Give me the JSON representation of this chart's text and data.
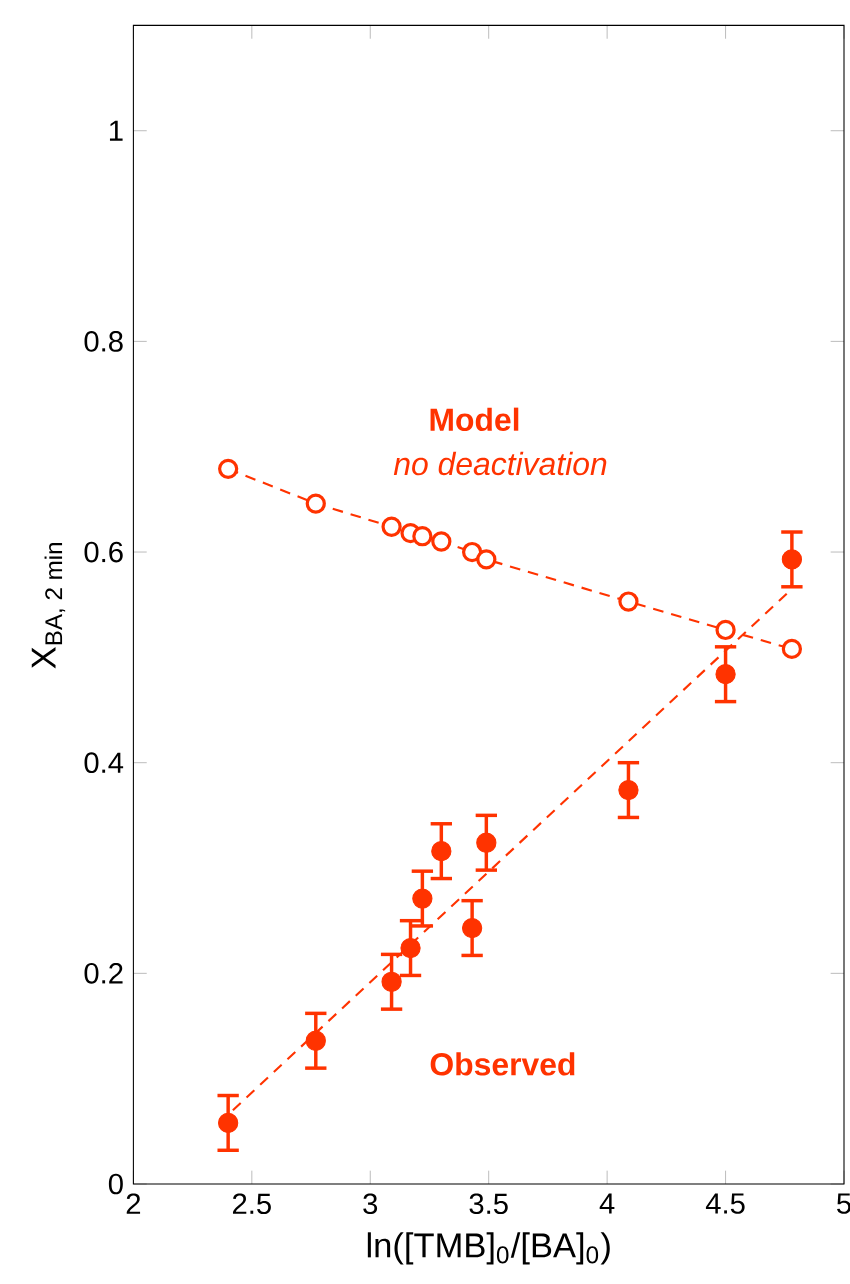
{
  "chart_data": {
    "type": "scatter",
    "xlabel": "ln([TMB]$_{0}$/[BA]$_{0}$)",
    "ylabel": "\\text{X}_{\\text{BA, 2 min}}",
    "xlim": [
      2,
      5
    ],
    "ylim": [
      0,
      1.1
    ],
    "xticks": [
      2,
      2.5,
      3,
      3.5,
      4,
      4.5,
      5
    ],
    "yticks": [
      0,
      0.2,
      0.4,
      0.6,
      0.8,
      1
    ],
    "grid": false,
    "legend": false,
    "annotations": [
      "no deactivation"
    ],
    "series": [
      {
        "name": "Model",
        "type": "line",
        "marker": "circle",
        "line_style": "dashed",
        "color": "#ff3300",
        "x": [
          2.4,
          2.77,
          3.09,
          3.17,
          3.22,
          3.3,
          3.43,
          3.49,
          4.09,
          4.5,
          4.78
        ],
        "values": [
          0.679,
          0.646,
          0.624,
          0.618,
          0.615,
          0.61,
          0.6,
          0.593,
          0.553,
          0.526,
          0.508
        ]
      },
      {
        "name": "Observed",
        "marker": "circle",
        "color": "#ff3300",
        "x": [
          2.4,
          2.77,
          3.09,
          3.17,
          3.22,
          3.3,
          3.43,
          3.49,
          4.09,
          4.5,
          4.78
        ],
        "values": [
          0.058,
          0.136,
          0.192,
          0.224,
          0.271,
          0.316,
          0.243,
          0.324,
          0.374,
          0.484,
          0.593
        ],
        "errors": [
          0.026,
          0.026,
          0.026,
          0.026,
          0.026,
          0.026,
          0.026,
          0.026,
          0.026,
          0.026,
          0.026
        ]
      },
      {
        "type": "line",
        "marker": "none",
        "line_style": "dashed",
        "color": "#ff3300",
        "x": [
          2.42,
          4.78
        ],
        "values": [
          0.07,
          0.565
        ]
      }
    ]
  }
}
